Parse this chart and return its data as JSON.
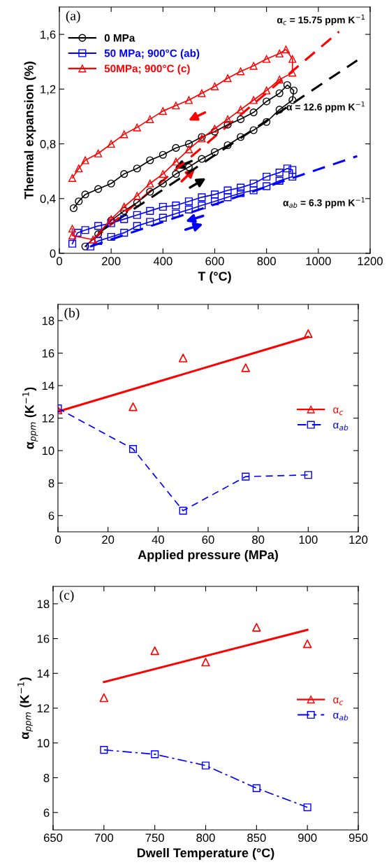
{
  "chart_data": [
    {
      "type": "line",
      "xlabel": "T (°C)",
      "ylabel": "Thermal expansion (%)",
      "xlim": [
        0,
        1200
      ],
      "xticks": [
        0,
        200,
        400,
        600,
        800,
        1000,
        1200
      ],
      "ylim": [
        0,
        1.8
      ],
      "yticks": [
        {
          "value": 0,
          "label": "0"
        },
        {
          "value": 0.4,
          "label": "0,4"
        },
        {
          "value": 0.8,
          "label": "0,8"
        },
        {
          "value": 1.2,
          "label": "1,2"
        },
        {
          "value": 1.6,
          "label": "1,6"
        }
      ],
      "legend": "top left",
      "grid": false,
      "annotations": [
        "(a)",
        "α$_{c}$ = 15.75 ppm K$^{−1}$",
        "α = 12.6 ppm K$^{−1}$",
        "α$_{ab}$ = 6.3 ppm K$^{−1}$"
      ],
      "series": [
        {
          "type": "line",
          "color": "#000000",
          "line_style": "dashed",
          "x": [
            150,
            1150
          ],
          "values": [
            0.15,
            1.41
          ]
        },
        {
          "type": "line",
          "color": "#ff0000",
          "line_style": "dashed",
          "x": [
            130,
            1080
          ],
          "values": [
            0.1,
            1.62
          ]
        },
        {
          "type": "line",
          "color": "#0000ff",
          "line_style": "dashed",
          "x": [
            120,
            1150
          ],
          "values": [
            0.05,
            0.71
          ]
        },
        {
          "name": "0 MPa",
          "color": "#000000",
          "marker": "circle",
          "line_style": "solid",
          "x": [
            100,
            150,
            200,
            250,
            300,
            350,
            400,
            450,
            500,
            550,
            600,
            650,
            700,
            750,
            800,
            850,
            900,
            905,
            880,
            850,
            800,
            750,
            700,
            650,
            600,
            550,
            500,
            450,
            400,
            350,
            300,
            250,
            200,
            150,
            100,
            75,
            55
          ],
          "values": [
            0.05,
            0.14,
            0.24,
            0.31,
            0.37,
            0.45,
            0.51,
            0.58,
            0.63,
            0.69,
            0.74,
            0.79,
            0.85,
            0.9,
            0.96,
            1.05,
            1.12,
            1.19,
            1.23,
            1.17,
            1.11,
            1.03,
            0.98,
            0.94,
            0.89,
            0.85,
            0.8,
            0.77,
            0.72,
            0.68,
            0.62,
            0.58,
            0.51,
            0.47,
            0.43,
            0.38,
            0.33
          ]
        },
        {
          "name": "50 MPa; 900°C (ab)",
          "color": "#0000ff",
          "marker": "square",
          "line_style": "solid",
          "x": [
            120,
            150,
            200,
            250,
            300,
            350,
            400,
            450,
            500,
            550,
            600,
            650,
            700,
            750,
            800,
            850,
            900,
            900,
            880,
            850,
            800,
            750,
            700,
            650,
            600,
            550,
            500,
            450,
            400,
            350,
            300,
            250,
            200,
            150,
            100,
            70,
            50
          ],
          "values": [
            0.05,
            0.09,
            0.12,
            0.15,
            0.2,
            0.23,
            0.26,
            0.29,
            0.32,
            0.35,
            0.38,
            0.41,
            0.44,
            0.46,
            0.49,
            0.53,
            0.56,
            0.61,
            0.62,
            0.59,
            0.56,
            0.51,
            0.48,
            0.46,
            0.43,
            0.41,
            0.38,
            0.35,
            0.34,
            0.31,
            0.28,
            0.25,
            0.22,
            0.2,
            0.17,
            0.15,
            0.07
          ]
        },
        {
          "name": "50MPa; 900°C (c)",
          "color": "#ff0000",
          "marker": "triangle",
          "line_style": "solid",
          "x": [
            50,
            50,
            130,
            200,
            250,
            300,
            350,
            400,
            450,
            500,
            550,
            600,
            650,
            700,
            750,
            800,
            850,
            900,
            900,
            875,
            850,
            800,
            750,
            700,
            650,
            600,
            550,
            500,
            450,
            400,
            350,
            300,
            250,
            200,
            150,
            100,
            75,
            50
          ],
          "values": [
            0.18,
            0.13,
            0.1,
            0.25,
            0.34,
            0.42,
            0.51,
            0.58,
            0.67,
            0.76,
            0.84,
            0.91,
            0.98,
            1.05,
            1.12,
            1.19,
            1.27,
            1.32,
            1.42,
            1.49,
            1.46,
            1.42,
            1.37,
            1.33,
            1.28,
            1.22,
            1.17,
            1.12,
            1.08,
            1.04,
            0.98,
            0.92,
            0.87,
            0.8,
            0.73,
            0.68,
            0.62,
            0.55
          ]
        }
      ]
    },
    {
      "type": "line",
      "xlabel": "Applied pressure (MPa)",
      "ylabel": "α$_{ppm}$ (K$^{−1}$)",
      "xlim": [
        0,
        120
      ],
      "xticks": [
        0,
        20,
        40,
        60,
        80,
        100,
        120
      ],
      "ylim": [
        5,
        19
      ],
      "yticks": [
        6,
        8,
        10,
        12,
        14,
        16,
        18
      ],
      "legend": "right",
      "grid": false,
      "annotations": [
        "(b)"
      ],
      "series": [
        {
          "type": "line",
          "color": "#ff0000",
          "line_style": "solid",
          "x": [
            0,
            100
          ],
          "values": [
            12.4,
            17.0
          ]
        },
        {
          "type": "scatter",
          "name": "α$_{c}$",
          "color": "#ff0000",
          "marker": "triangle",
          "x": [
            0,
            30,
            50,
            75,
            100
          ],
          "values": [
            12.5,
            12.7,
            15.7,
            15.1,
            17.2
          ]
        },
        {
          "type": "line",
          "name": "α$_{ab}$",
          "color": "#0000ff",
          "marker": "square",
          "line_style": "dashed",
          "x": [
            0,
            30,
            50,
            75,
            100
          ],
          "values": [
            12.6,
            10.1,
            6.3,
            8.4,
            8.5
          ]
        }
      ]
    },
    {
      "type": "line",
      "xlabel": "Dwell Temperature (°C)",
      "ylabel": "α$_{ppm}$ (K$^{−1}$)",
      "xlim": [
        650,
        950
      ],
      "xticks": [
        650,
        700,
        750,
        800,
        850,
        900,
        950
      ],
      "ylim": [
        5,
        19
      ],
      "yticks": [
        6,
        8,
        10,
        12,
        14,
        16,
        18
      ],
      "legend": "right",
      "grid": false,
      "annotations": [
        "(c)"
      ],
      "series": [
        {
          "type": "line",
          "color": "#ff0000",
          "line_style": "solid",
          "x": [
            700,
            900
          ],
          "values": [
            13.5,
            16.5
          ]
        },
        {
          "type": "scatter",
          "name": "α$_{c}$",
          "color": "#ff0000",
          "marker": "triangle",
          "x": [
            700,
            750,
            800,
            850,
            900
          ],
          "values": [
            12.6,
            15.3,
            14.65,
            16.65,
            15.7
          ]
        },
        {
          "type": "line",
          "name": "α$_{ab}$",
          "color": "#0000ff",
          "marker": "square",
          "line_style": "dashdot",
          "x": [
            700,
            750,
            800,
            850,
            900
          ],
          "values": [
            9.6,
            9.35,
            8.7,
            7.4,
            6.3
          ]
        }
      ]
    }
  ]
}
